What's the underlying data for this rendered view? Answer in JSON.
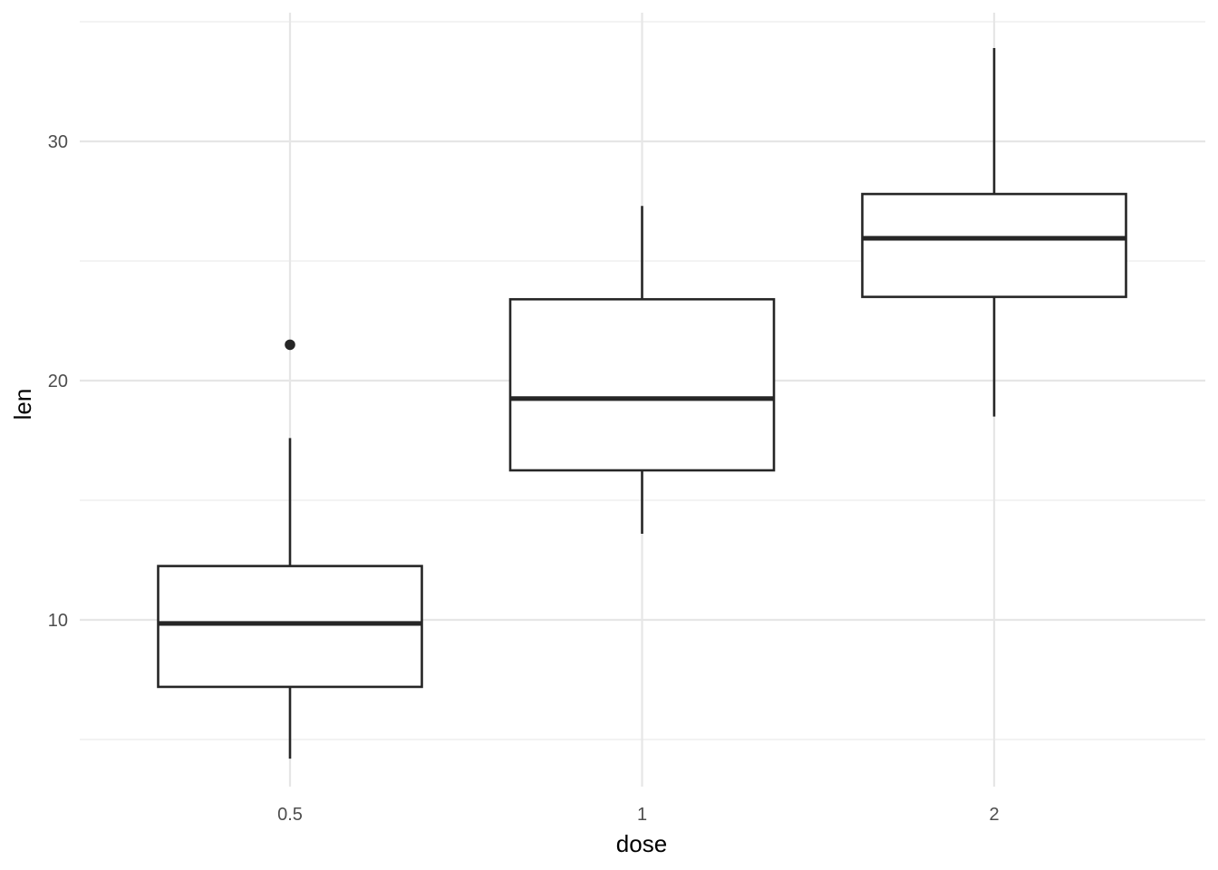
{
  "chart_data": {
    "type": "boxplot",
    "title": "",
    "xlabel": "dose",
    "ylabel": "len",
    "categories": [
      "0.5",
      "1",
      "2"
    ],
    "ylim": [
      3.6,
      35.5
    ],
    "y_ticks": [
      10,
      20,
      30
    ],
    "y_tick_labels": [
      "10",
      "20",
      "30"
    ],
    "grid": true,
    "legend": "none",
    "boxes": [
      {
        "category": "0.5",
        "whisker_low": 4.2,
        "q1": 7.2,
        "median": 9.85,
        "q3": 12.25,
        "whisker_high": 17.6,
        "outliers": [
          21.5
        ]
      },
      {
        "category": "1",
        "whisker_low": 13.6,
        "q1": 16.25,
        "median": 19.25,
        "q3": 23.4,
        "whisker_high": 27.3,
        "outliers": []
      },
      {
        "category": "2",
        "whisker_low": 18.5,
        "q1": 23.5,
        "median": 25.95,
        "q3": 27.8,
        "whisker_high": 33.9,
        "outliers": []
      }
    ],
    "colors": {
      "box_stroke": "#262626",
      "box_fill": "#ffffff",
      "grid_major": "#e6e6e6",
      "grid_minor": "#efefef",
      "tick_text": "#4d4d4d",
      "axis_title": "#000000"
    }
  }
}
